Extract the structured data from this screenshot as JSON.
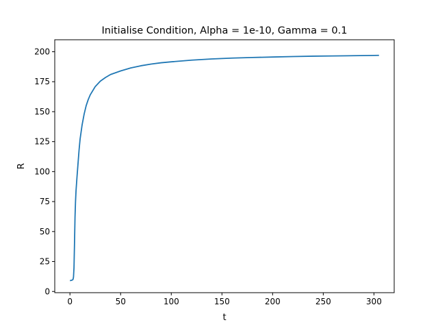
{
  "chart_data": {
    "type": "line",
    "title": "Initialise Condition, Alpha = 1e-10, Gamma = 0.1",
    "xlabel": "t",
    "ylabel": "R",
    "xlim": [
      -15,
      320
    ],
    "ylim": [
      -1,
      210
    ],
    "xticks": [
      0,
      50,
      100,
      150,
      200,
      250,
      300
    ],
    "yticks": [
      0,
      25,
      50,
      75,
      100,
      125,
      150,
      175,
      200
    ],
    "grid": false,
    "series": [
      {
        "color": "#1f77b4",
        "x": [
          0,
          1,
          2,
          3,
          3.5,
          4,
          4.5,
          5,
          5.5,
          6,
          6.5,
          7,
          8,
          9,
          10,
          12,
          14,
          16,
          18,
          20,
          25,
          30,
          35,
          40,
          45,
          50,
          60,
          70,
          80,
          90,
          100,
          120,
          140,
          160,
          180,
          200,
          220,
          240,
          260,
          280,
          300,
          305
        ],
        "y": [
          9,
          9.2,
          9.4,
          10,
          12,
          20,
          40,
          62,
          75,
          84,
          90,
          96,
          107,
          118,
          127,
          139,
          148,
          155,
          160,
          164,
          171,
          175.5,
          178.5,
          181,
          182.5,
          184,
          186.5,
          188.3,
          189.7,
          190.8,
          191.6,
          193,
          194,
          194.7,
          195.2,
          195.6,
          196,
          196.3,
          196.5,
          196.7,
          196.9,
          197
        ]
      }
    ]
  }
}
